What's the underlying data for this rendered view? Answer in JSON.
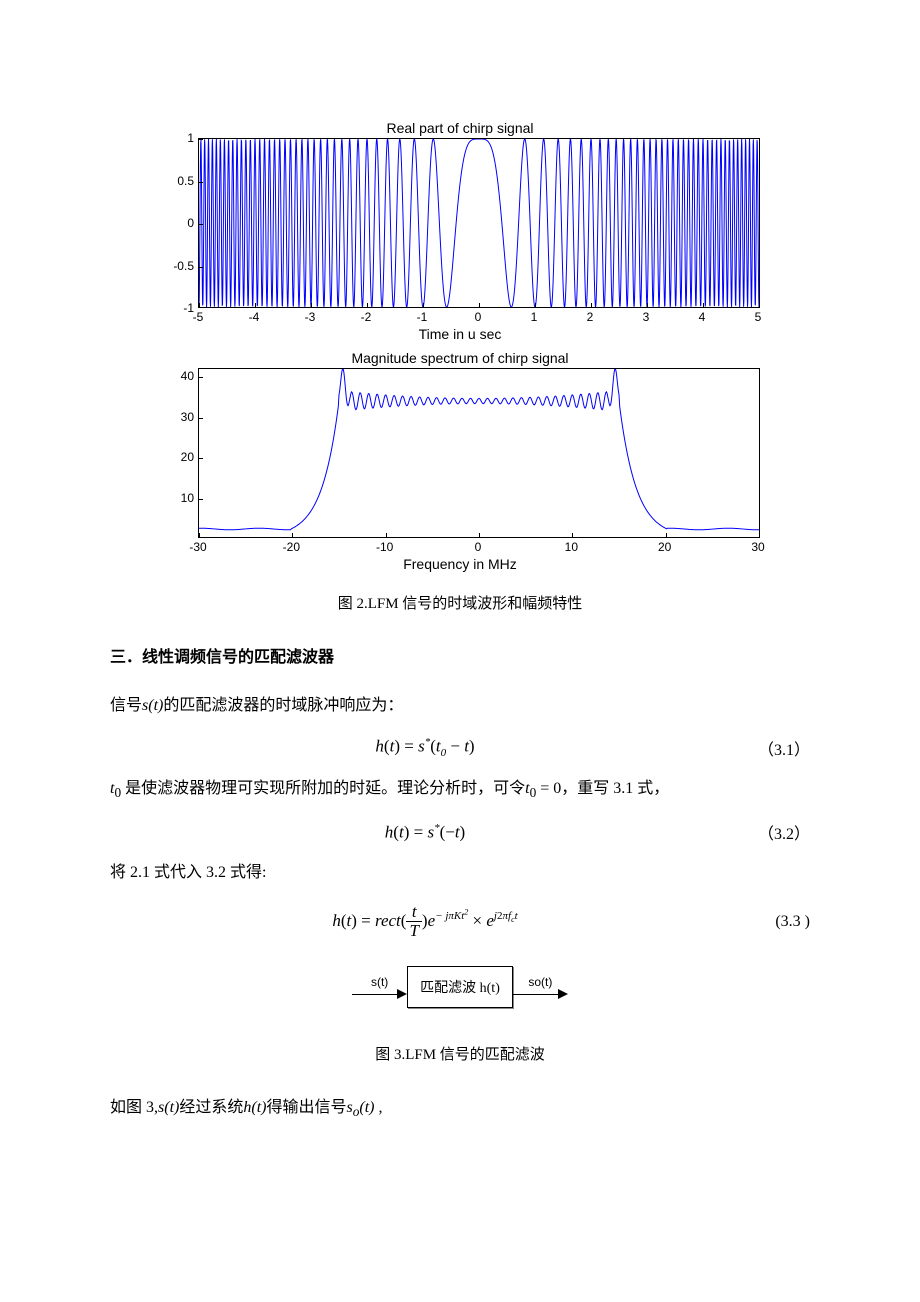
{
  "chart1": {
    "type": "line",
    "title": "Real part of chirp signal",
    "title_fontsize": 14,
    "xlabel": "Time in u sec",
    "xlim": [
      -5,
      5
    ],
    "xticks": [
      -5,
      -4,
      -3,
      -2,
      -1,
      0,
      1,
      2,
      3,
      4,
      5
    ],
    "ylim": [
      -1,
      1
    ],
    "yticks": [
      -1,
      -0.5,
      0,
      0.5,
      1
    ],
    "line_color": "#0000ff",
    "line_width": 1,
    "background_color": "#ffffff",
    "border_color": "#000000",
    "chirp_rate": 3.0,
    "samples": 2000
  },
  "chart2": {
    "type": "line",
    "title": "Magnitude spectrum of chirp signal",
    "title_fontsize": 14,
    "xlabel": "Frequency in MHz",
    "xlim": [
      -30,
      30
    ],
    "xticks": [
      -30,
      -20,
      -10,
      0,
      10,
      20,
      30
    ],
    "ylim": [
      0,
      42
    ],
    "yticks": [
      10,
      20,
      30,
      40
    ],
    "line_color": "#0000ff",
    "line_width": 1,
    "background_color": "#ffffff",
    "border_color": "#000000",
    "bandwidth_half": 15,
    "plateau_level": 34,
    "ripple_amp": 2.2,
    "ripple_freq": 2.2,
    "floor_level": 2,
    "samples": 800
  },
  "fig2_caption": "图 2.LFM 信号的时域波形和幅频特性",
  "section3_heading": "三．线性调频信号的匹配滤波器",
  "para1_pre": "信号",
  "para1_mid": "s(t)",
  "para1_post": "的匹配滤波器的时域脉冲响应为：",
  "eq31": "h(t) = s*(t₀ − t)",
  "eq31_num": "（3.1）",
  "para2_a": "t",
  "para2_a_sub": "0",
  "para2_b": "是使滤波器物理可实现所附加的时延。理论分析时，可令",
  "para2_c": "t",
  "para2_c_sub": "0",
  "para2_d": " = 0",
  "para2_e": "，重写 3.1 式，",
  "eq32": "h(t) = s*(−t)",
  "eq32_num": "（3.2）",
  "para3": "将 2.1 式代入 3.2 式得:",
  "eq33_lhs": "h(t) = rect(",
  "eq33_frac_num": "t",
  "eq33_frac_den": "T",
  "eq33_exp1a": "− jπKt",
  "eq33_exp1b": "2",
  "eq33_mid": " × e",
  "eq33_exp2": "j2πf_c t",
  "eq33_num": "(3.3 )",
  "block": {
    "in_label": "s(t)",
    "box_label": "匹配滤波 h(t)",
    "out_label": "so(t)"
  },
  "fig3_caption": "图 3.LFM 信号的匹配滤波",
  "para4_a": "如图 3,",
  "para4_b": "s(t)",
  "para4_c": "经过系统",
  "para4_d": "h(t)",
  "para4_e": "得输出信号",
  "para4_f": "s",
  "para4_f_sub": "o",
  "para4_g": "(t) ,"
}
